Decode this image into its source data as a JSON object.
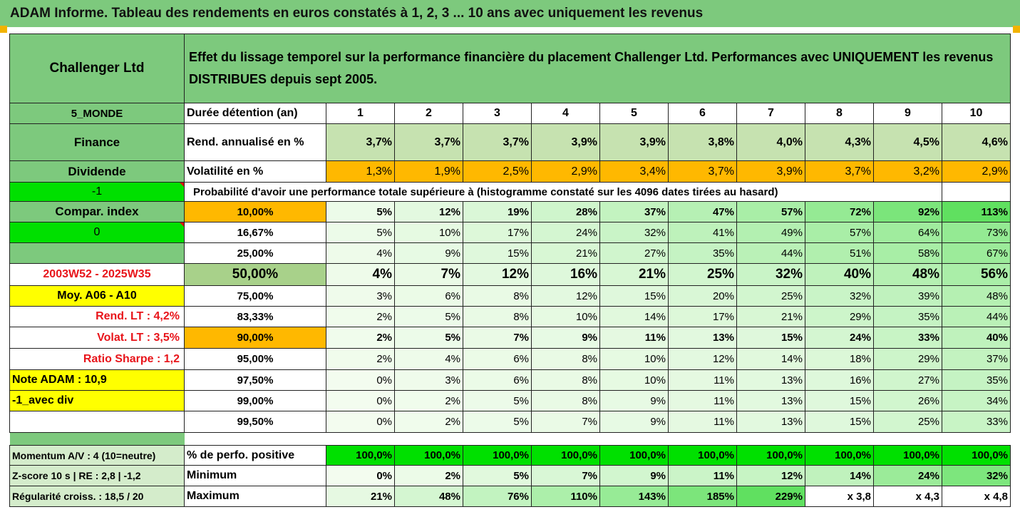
{
  "title": "ADAM Informe. Tableau des rendements en euros constatés à 1, 2, 3 ... 10 ans avec uniquement les revenus",
  "fund_name": "Challenger Ltd",
  "description": "Effet du lissage temporel sur la performance financière du placement Challenger Ltd. Performances avec UNIQUEMENT les revenus DISTRIBUES depuis sept 2005.",
  "side": {
    "zone": "5_MONDE",
    "sector": "Finance",
    "type": "Dividende",
    "param1": "-1",
    "compar": "Compar. index",
    "param2": "0",
    "period": "2003W52 - 2025W35",
    "moy": "Moy. A06 - A10",
    "rend_lt": "Rend. LT :   4,2%",
    "volat_lt": "Volat. LT :   3,5%",
    "sharpe": "Ratio Sharpe :   1,2",
    "note": "Note ADAM : 10,9",
    "avec_div": "-1_avec div"
  },
  "duree_label": "Durée détention (an)",
  "years": [
    "1",
    "2",
    "3",
    "4",
    "5",
    "6",
    "7",
    "8",
    "9",
    "10"
  ],
  "rend_label": "Rend. annualisé en %",
  "rend": [
    "3,7%",
    "3,7%",
    "3,7%",
    "3,9%",
    "3,9%",
    "3,8%",
    "4,0%",
    "4,3%",
    "4,5%",
    "4,6%"
  ],
  "vol_label": "Volatilité en %",
  "vol": [
    "1,3%",
    "1,9%",
    "2,5%",
    "2,9%",
    "3,4%",
    "3,7%",
    "3,9%",
    "3,7%",
    "3,2%",
    "2,9%"
  ],
  "prob_label": "Probabilité d'avoir une performance totale supérieure à (histogramme constaté sur les 4096 dates tirées au hasard)",
  "prob_rows": [
    {
      "p": "10,00%",
      "v": [
        "5%",
        "12%",
        "19%",
        "28%",
        "37%",
        "47%",
        "57%",
        "72%",
        "92%",
        "113%"
      ]
    },
    {
      "p": "16,67%",
      "v": [
        "5%",
        "10%",
        "17%",
        "24%",
        "32%",
        "41%",
        "49%",
        "57%",
        "64%",
        "73%"
      ]
    },
    {
      "p": "25,00%",
      "v": [
        "4%",
        "9%",
        "15%",
        "21%",
        "27%",
        "35%",
        "44%",
        "51%",
        "58%",
        "67%"
      ]
    },
    {
      "p": "50,00%",
      "v": [
        "4%",
        "7%",
        "12%",
        "16%",
        "21%",
        "25%",
        "32%",
        "40%",
        "48%",
        "56%"
      ]
    },
    {
      "p": "75,00%",
      "v": [
        "3%",
        "6%",
        "8%",
        "12%",
        "15%",
        "20%",
        "25%",
        "32%",
        "39%",
        "48%"
      ]
    },
    {
      "p": "83,33%",
      "v": [
        "2%",
        "5%",
        "8%",
        "10%",
        "14%",
        "17%",
        "21%",
        "29%",
        "35%",
        "44%"
      ]
    },
    {
      "p": "90,00%",
      "v": [
        "2%",
        "5%",
        "7%",
        "9%",
        "11%",
        "13%",
        "15%",
        "24%",
        "33%",
        "40%"
      ]
    },
    {
      "p": "95,00%",
      "v": [
        "2%",
        "4%",
        "6%",
        "8%",
        "10%",
        "12%",
        "14%",
        "18%",
        "29%",
        "37%"
      ]
    },
    {
      "p": "97,50%",
      "v": [
        "0%",
        "3%",
        "6%",
        "8%",
        "10%",
        "11%",
        "13%",
        "16%",
        "27%",
        "35%"
      ]
    },
    {
      "p": "99,00%",
      "v": [
        "0%",
        "2%",
        "5%",
        "8%",
        "9%",
        "11%",
        "13%",
        "15%",
        "26%",
        "34%"
      ]
    },
    {
      "p": "99,50%",
      "v": [
        "0%",
        "2%",
        "5%",
        "7%",
        "9%",
        "11%",
        "13%",
        "15%",
        "25%",
        "33%"
      ]
    }
  ],
  "bottom": [
    {
      "side": "Momentum A/V : 4 (10=neutre)",
      "label": "% de perfo. positive",
      "v": [
        "100,0%",
        "100,0%",
        "100,0%",
        "100,0%",
        "100,0%",
        "100,0%",
        "100,0%",
        "100,0%",
        "100,0%",
        "100,0%"
      ]
    },
    {
      "side": "Z-score 10 s  | RE : 2,8 | -1,2",
      "label": "Minimum",
      "v": [
        "0%",
        "2%",
        "5%",
        "7%",
        "9%",
        "11%",
        "12%",
        "14%",
        "24%",
        "32%"
      ]
    },
    {
      "side": "Régularité croiss. : 18,5 / 20",
      "label": "Maximum",
      "v": [
        "21%",
        "48%",
        "76%",
        "110%",
        "143%",
        "185%",
        "229%",
        "x 3,8",
        "x 4,3",
        "x 4,8"
      ]
    }
  ],
  "colors": {
    "header_green": "#7dc97d",
    "yellow": "#ffff00",
    "lime": "#00e000",
    "orange": "#ffb800",
    "red_text": "#e8141a"
  }
}
